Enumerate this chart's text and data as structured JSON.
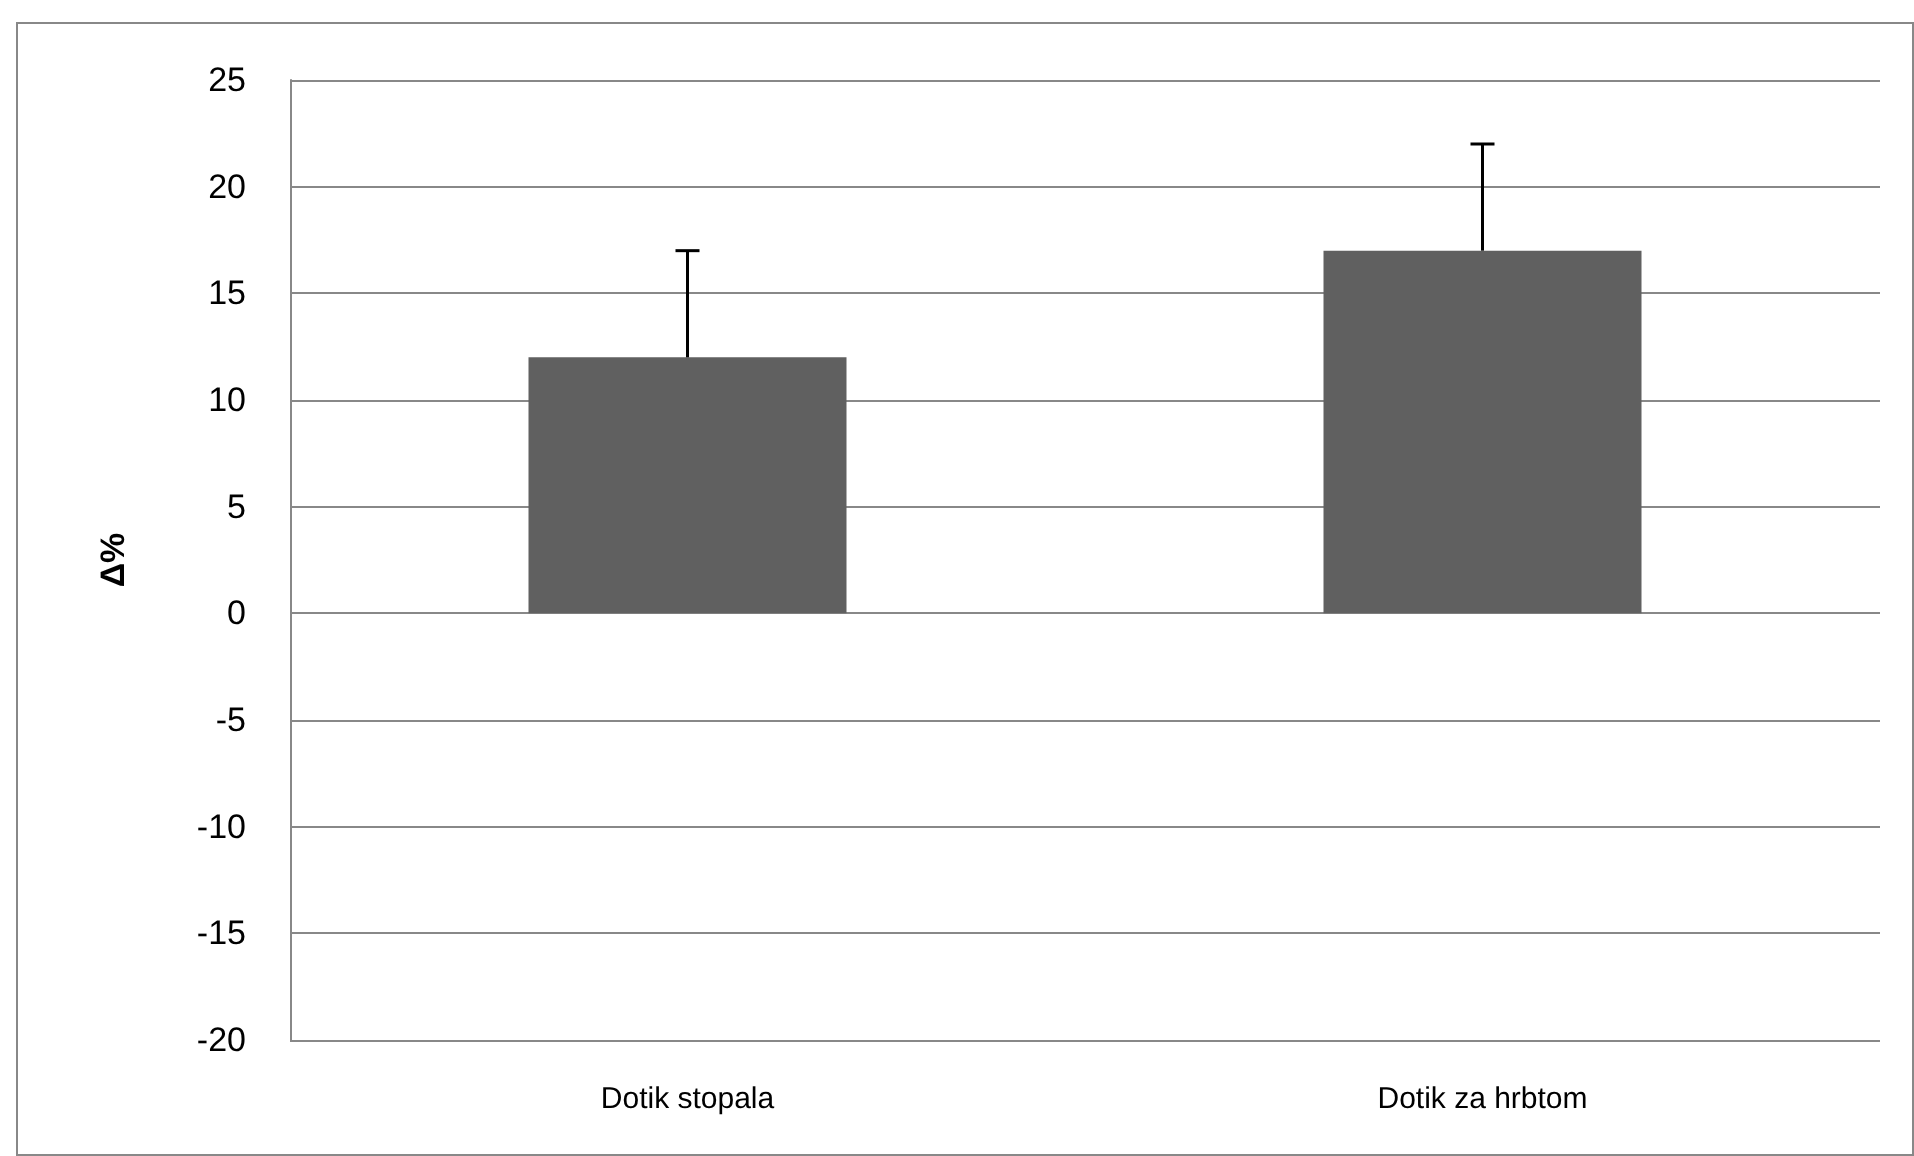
{
  "chart_data": {
    "type": "bar",
    "ylabel": "Δ%",
    "categories": [
      "Dotik stopala",
      "Dotik za hrbtom"
    ],
    "values": [
      12,
      17
    ],
    "errors": [
      [
        12,
        17
      ],
      [
        17,
        22
      ]
    ],
    "color": "#606060",
    "ylim": [
      -20,
      25
    ],
    "yticks": [
      -20,
      -15,
      -10,
      -5,
      0,
      5,
      10,
      15,
      20,
      25
    ],
    "grid": "y"
  }
}
